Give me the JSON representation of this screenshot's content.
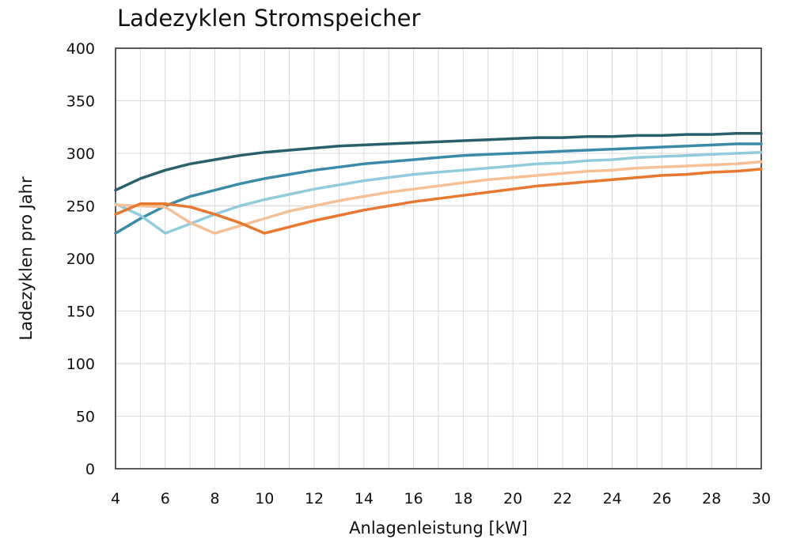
{
  "chart_data": {
    "type": "line",
    "title": "Ladezyklen Stromspeicher",
    "xlabel": "Anlagenleistung [kW]",
    "ylabel": "Ladezyklen pro Jahr",
    "xlim": [
      4,
      30
    ],
    "ylim": [
      0,
      400
    ],
    "xticks": [
      4,
      6,
      8,
      10,
      12,
      14,
      16,
      18,
      20,
      22,
      24,
      26,
      28,
      30
    ],
    "yticks": [
      0,
      50,
      100,
      150,
      200,
      250,
      300,
      350,
      400
    ],
    "grid": true,
    "legend": "none",
    "x": [
      4,
      5,
      6,
      7,
      8,
      9,
      10,
      11,
      12,
      13,
      14,
      15,
      16,
      17,
      18,
      19,
      20,
      21,
      22,
      23,
      24,
      25,
      26,
      27,
      28,
      29,
      30
    ],
    "series": [
      {
        "color": "#2a5f6b",
        "values": [
          265,
          276,
          284,
          290,
          294,
          298,
          301,
          303,
          305,
          307,
          308,
          309,
          310,
          311,
          312,
          313,
          314,
          315,
          315,
          316,
          316,
          317,
          317,
          318,
          318,
          319,
          319
        ]
      },
      {
        "color": "#3a8ba8",
        "values": [
          224,
          238,
          250,
          259,
          265,
          271,
          276,
          280,
          284,
          287,
          290,
          292,
          294,
          296,
          298,
          299,
          300,
          301,
          302,
          303,
          304,
          305,
          306,
          307,
          308,
          309,
          309
        ]
      },
      {
        "color": "#92cbdc",
        "values": [
          252,
          241,
          224,
          233,
          242,
          250,
          256,
          261,
          266,
          270,
          274,
          277,
          280,
          282,
          284,
          286,
          288,
          290,
          291,
          293,
          294,
          296,
          297,
          298,
          299,
          300,
          301
        ]
      },
      {
        "color": "#f6bf95",
        "values": [
          251,
          250,
          249,
          234,
          224,
          231,
          238,
          245,
          250,
          255,
          259,
          263,
          266,
          269,
          272,
          275,
          277,
          279,
          281,
          283,
          284,
          286,
          287,
          288,
          289,
          290,
          292
        ]
      },
      {
        "color": "#e8782f",
        "values": [
          242,
          252,
          252,
          249,
          242,
          234,
          224,
          230,
          236,
          241,
          246,
          250,
          254,
          257,
          260,
          263,
          266,
          269,
          271,
          273,
          275,
          277,
          279,
          280,
          282,
          283,
          285
        ]
      }
    ]
  }
}
